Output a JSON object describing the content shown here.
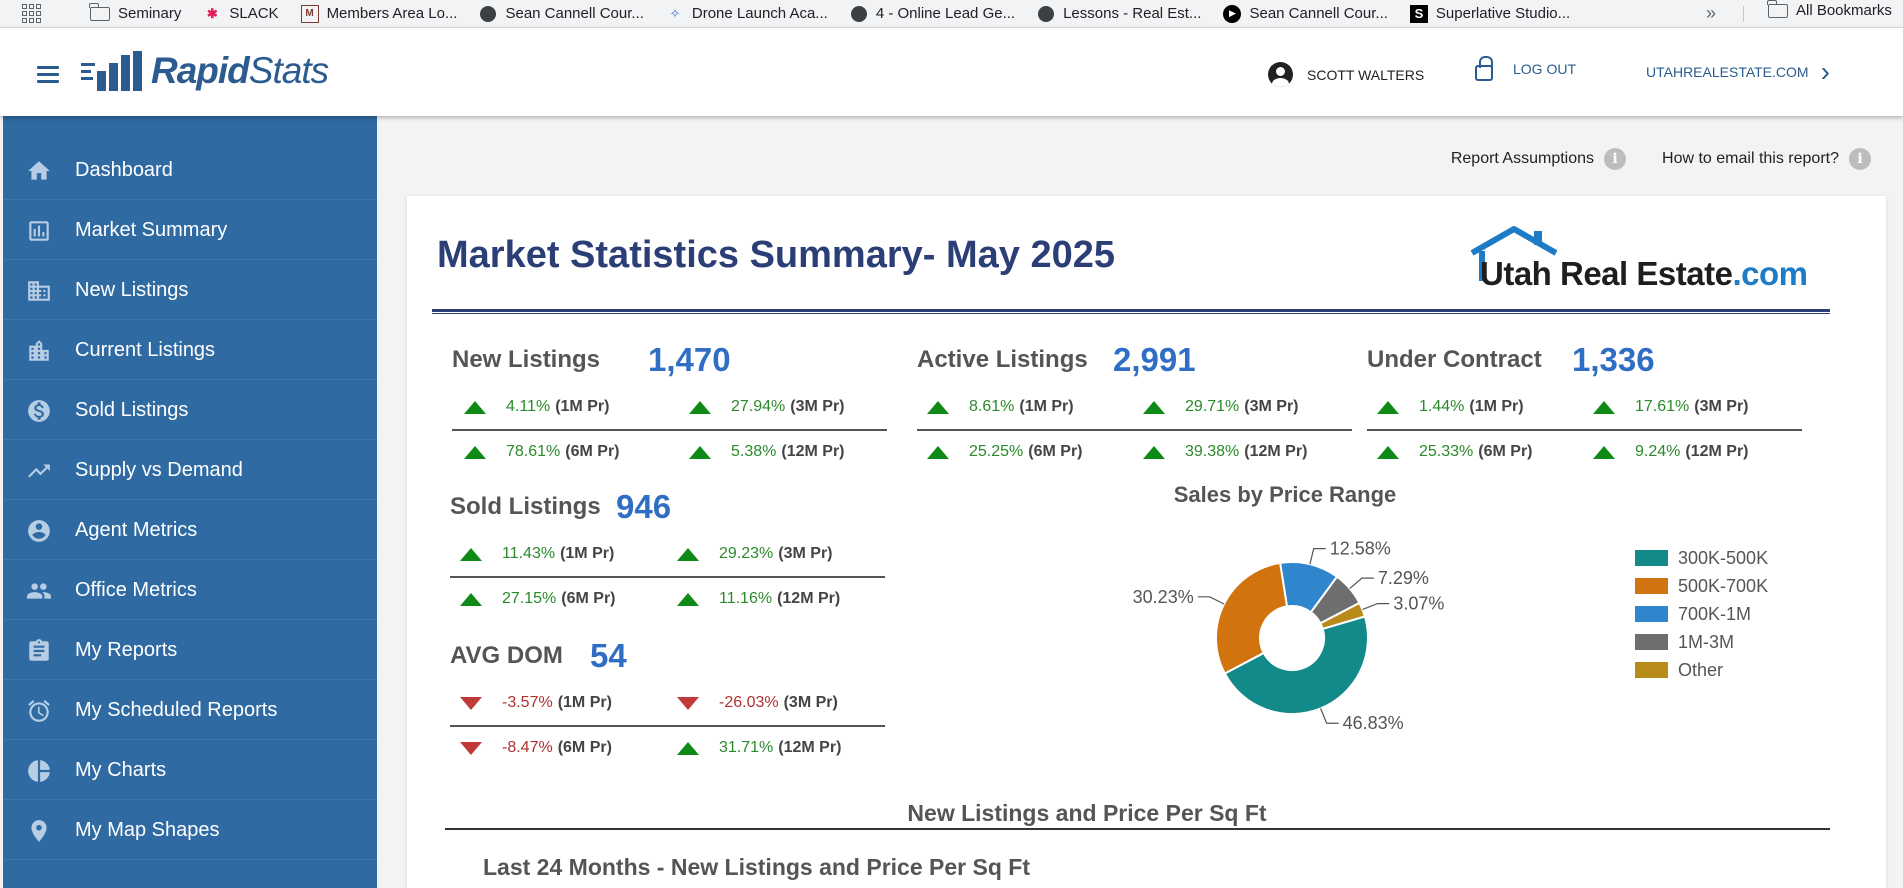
{
  "bookmarks": {
    "items": [
      {
        "label": "Seminary",
        "icon": "folder-icon"
      },
      {
        "label": "SLACK",
        "icon": "slack-icon"
      },
      {
        "label": "Members Area Lo...",
        "icon": "site-icon"
      },
      {
        "label": "Sean Cannell Cour...",
        "icon": "globe-icon"
      },
      {
        "label": "Drone Launch Aca...",
        "icon": "drone-icon"
      },
      {
        "label": "4 - Online Lead Ge...",
        "icon": "globe-icon"
      },
      {
        "label": "Lessons - Real Est...",
        "icon": "globe-icon"
      },
      {
        "label": "Sean Cannell Cour...",
        "icon": "play-icon"
      },
      {
        "label": "Superlative Studio...",
        "icon": "s-icon"
      }
    ],
    "more": "»",
    "all_bookmarks": "All Bookmarks"
  },
  "header": {
    "logo_bold": "Rapid",
    "logo_rest": "Stats",
    "user_name": "SCOTT WALTERS",
    "logout": "LOG OUT",
    "site": "UTAHREALESTATE.COM"
  },
  "sidebar": {
    "items": [
      {
        "label": "Dashboard",
        "icon": "home-icon"
      },
      {
        "label": "Market Summary",
        "icon": "bar-chart-icon"
      },
      {
        "label": "New Listings",
        "icon": "building-icon"
      },
      {
        "label": "Current Listings",
        "icon": "city-icon"
      },
      {
        "label": "Sold Listings",
        "icon": "dollar-icon"
      },
      {
        "label": "Supply vs Demand",
        "icon": "trending-icon"
      },
      {
        "label": "Agent Metrics",
        "icon": "account-icon"
      },
      {
        "label": "Office Metrics",
        "icon": "people-icon"
      },
      {
        "label": "My Reports",
        "icon": "clipboard-icon"
      },
      {
        "label": "My Scheduled Reports",
        "icon": "alarm-icon"
      },
      {
        "label": "My Charts",
        "icon": "pie-icon"
      },
      {
        "label": "My Map Shapes",
        "icon": "map-pin-icon"
      }
    ]
  },
  "links": {
    "assumptions": "Report Assumptions",
    "email": "How to email this report?",
    "info": "i"
  },
  "report": {
    "title": "Market Statistics Summary- May 2025",
    "brand_main": "Utah Real Estate",
    "brand_tld": ".com"
  },
  "stats": {
    "new_listings": {
      "label": "New Listings",
      "value": "1,470",
      "changes": [
        {
          "pct": "4.11%",
          "period": "(1M Pr)",
          "dir": "up"
        },
        {
          "pct": "27.94%",
          "period": "(3M Pr)",
          "dir": "up"
        },
        {
          "pct": "78.61%",
          "period": "(6M Pr)",
          "dir": "up"
        },
        {
          "pct": "5.38%",
          "period": "(12M Pr)",
          "dir": "up"
        }
      ]
    },
    "active_listings": {
      "label": "Active Listings",
      "value": "2,991",
      "changes": [
        {
          "pct": "8.61%",
          "period": "(1M Pr)",
          "dir": "up"
        },
        {
          "pct": "29.71%",
          "period": "(3M Pr)",
          "dir": "up"
        },
        {
          "pct": "25.25%",
          "period": "(6M Pr)",
          "dir": "up"
        },
        {
          "pct": "39.38%",
          "period": "(12M Pr)",
          "dir": "up"
        }
      ]
    },
    "under_contract": {
      "label": "Under Contract",
      "value": "1,336",
      "changes": [
        {
          "pct": "1.44%",
          "period": "(1M Pr)",
          "dir": "up"
        },
        {
          "pct": "17.61%",
          "period": "(3M Pr)",
          "dir": "up"
        },
        {
          "pct": "25.33%",
          "period": "(6M Pr)",
          "dir": "up"
        },
        {
          "pct": "9.24%",
          "period": "(12M Pr)",
          "dir": "up"
        }
      ]
    },
    "sold_listings": {
      "label": "Sold Listings",
      "value": "946",
      "changes": [
        {
          "pct": "11.43%",
          "period": "(1M Pr)",
          "dir": "up"
        },
        {
          "pct": "29.23%",
          "period": "(3M Pr)",
          "dir": "up"
        },
        {
          "pct": "27.15%",
          "period": "(6M Pr)",
          "dir": "up"
        },
        {
          "pct": "11.16%",
          "period": "(12M Pr)",
          "dir": "up"
        }
      ]
    },
    "avg_dom": {
      "label": "AVG DOM",
      "value": "54",
      "changes": [
        {
          "pct": "-3.57%",
          "period": "(1M Pr)",
          "dir": "down"
        },
        {
          "pct": "-26.03%",
          "period": "(3M Pr)",
          "dir": "down"
        },
        {
          "pct": "-8.47%",
          "period": "(6M Pr)",
          "dir": "down"
        },
        {
          "pct": "31.71%",
          "period": "(12M Pr)",
          "dir": "up"
        }
      ]
    }
  },
  "chart_data": {
    "type": "pie",
    "title": "Sales by Price Range",
    "categories": [
      "300K-500K",
      "500K-700K",
      "700K-1M",
      "1M-3M",
      "Other"
    ],
    "values": [
      46.83,
      30.23,
      12.58,
      7.29,
      3.07
    ],
    "labels": [
      "46.83%",
      "30.23%",
      "12.58%",
      "7.29%",
      "3.07%"
    ],
    "colors": [
      "#138a8a",
      "#d1740f",
      "#2f86cc",
      "#6e6e6e",
      "#b88a1a"
    ],
    "donut": true,
    "legend": "right"
  },
  "section": {
    "title": "New Listings and Price Per Sq Ft",
    "subtitle": "Last 24 Months - New Listings and Price Per Sq Ft"
  }
}
